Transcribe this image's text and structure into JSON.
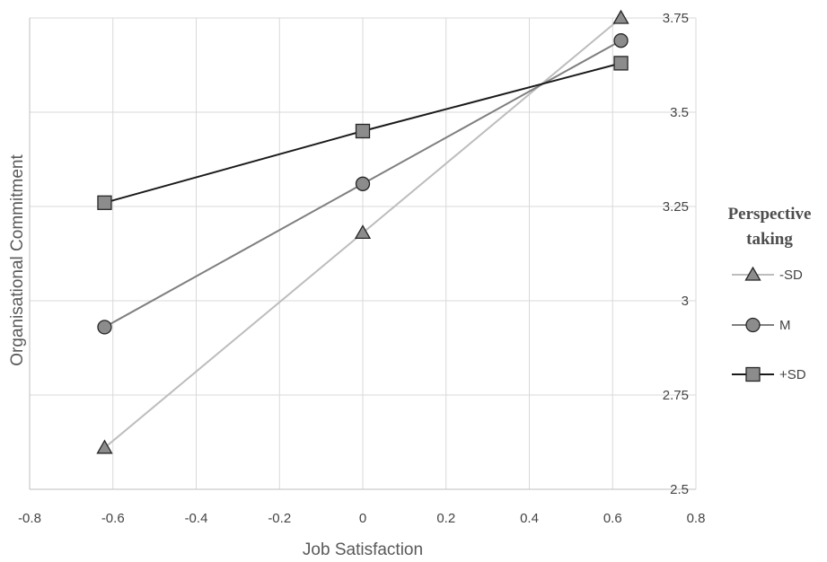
{
  "chart_data": {
    "type": "line",
    "xlabel": "Job Satisfaction",
    "ylabel": "Organisational Commitment",
    "xlim": [
      -0.8,
      0.8
    ],
    "ylim": [
      2.5,
      3.75
    ],
    "x_ticks": [
      "-0.8",
      "-0.6",
      "-0.4",
      "-0.2",
      "0",
      "0.2",
      "0.4",
      "0.6",
      "0.8"
    ],
    "y_ticks": [
      "2.5",
      "2.75",
      "3",
      "3.25",
      "3.5",
      "3.75"
    ],
    "y_axis_side": "right",
    "grid": true,
    "legend": {
      "title": "Perspective taking",
      "title_lines": [
        "Perspective",
        "taking"
      ],
      "placement": "right"
    },
    "x": [
      -0.62,
      0,
      0.62
    ],
    "series": [
      {
        "name": "-SD",
        "marker": "triangle",
        "color": "#bdbdbd",
        "values": [
          2.61,
          3.18,
          3.75
        ]
      },
      {
        "name": "M",
        "marker": "circle",
        "color": "#7f7f7f",
        "values": [
          2.93,
          3.31,
          3.69
        ]
      },
      {
        "name": "+SD",
        "marker": "square",
        "color": "#1a1a1a",
        "values": [
          3.26,
          3.45,
          3.63
        ]
      }
    ]
  }
}
